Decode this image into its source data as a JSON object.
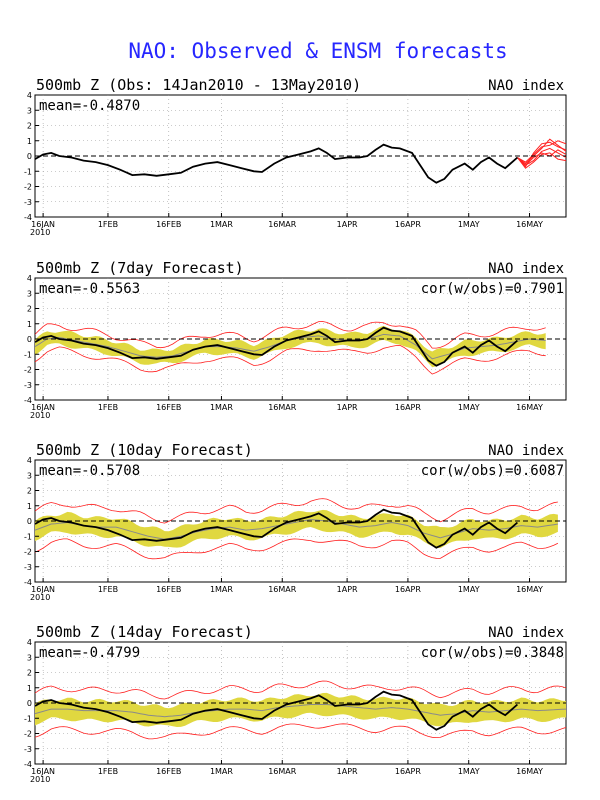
{
  "title": "NAO: Observed & ENSM forecasts",
  "colors": {
    "observed": "#000000",
    "ensemble_members": "#ff2020",
    "spread": "#e0d840",
    "ensemble_mean": "#8a8a8a",
    "title": "#2626ff"
  },
  "x_ticks": [
    "16JAN",
    "1FEB",
    "16FEB",
    "1MAR",
    "16MAR",
    "1APR",
    "16APR",
    "1MAY",
    "16MAY"
  ],
  "x_year": "2010",
  "y_ticks": [
    "4",
    "3",
    "2",
    "1",
    "0",
    "-1",
    "-2",
    "-3",
    "-4"
  ],
  "chart_data": [
    {
      "type": "line",
      "title": "500mb Z (Obs: 14Jan2010 - 13May2010)",
      "right_label": "NAO index",
      "stat_left": "mean=-0.4870",
      "stat_right": "",
      "ylim": [
        -4,
        4
      ],
      "xlim": [
        "14JAN",
        "25MAY"
      ],
      "zero_line": "dashed",
      "grid": "dotted",
      "series": [
        {
          "values": [
            [
              "2010-01-14",
              -0.2
            ],
            [
              "2010-01-16",
              0.1
            ],
            [
              "2010-01-18",
              0.2
            ],
            [
              "2010-01-20",
              0.0
            ],
            [
              "2010-01-23",
              -0.1
            ],
            [
              "2010-01-26",
              -0.3
            ],
            [
              "2010-01-29",
              -0.4
            ],
            [
              "2010-02-01",
              -0.6
            ],
            [
              "2010-02-04",
              -0.9
            ],
            [
              "2010-02-07",
              -1.25
            ],
            [
              "2010-02-10",
              -1.2
            ],
            [
              "2010-02-13",
              -1.3
            ],
            [
              "2010-02-16",
              -1.2
            ],
            [
              "2010-02-19",
              -1.1
            ],
            [
              "2010-02-22",
              -0.7
            ],
            [
              "2010-02-25",
              -0.5
            ],
            [
              "2010-02-28",
              -0.4
            ],
            [
              "2010-03-03",
              -0.6
            ],
            [
              "2010-03-06",
              -0.8
            ],
            [
              "2010-03-09",
              -1.0
            ],
            [
              "2010-03-11",
              -1.05
            ],
            [
              "2010-03-14",
              -0.5
            ],
            [
              "2010-03-17",
              -0.1
            ],
            [
              "2010-03-20",
              0.1
            ],
            [
              "2010-03-23",
              0.3
            ],
            [
              "2010-03-25",
              0.5
            ],
            [
              "2010-03-27",
              0.2
            ],
            [
              "2010-03-29",
              -0.2
            ],
            [
              "2010-04-01",
              -0.1
            ],
            [
              "2010-04-04",
              -0.1
            ],
            [
              "2010-04-06",
              0.0
            ],
            [
              "2010-04-08",
              0.4
            ],
            [
              "2010-04-10",
              0.75
            ],
            [
              "2010-04-12",
              0.55
            ],
            [
              "2010-04-14",
              0.5
            ],
            [
              "2010-04-17",
              0.2
            ],
            [
              "2010-04-19",
              -0.6
            ],
            [
              "2010-04-21",
              -1.4
            ],
            [
              "2010-04-23",
              -1.75
            ],
            [
              "2010-04-25",
              -1.5
            ],
            [
              "2010-04-27",
              -0.9
            ],
            [
              "2010-04-30",
              -0.5
            ],
            [
              "2010-05-02",
              -0.9
            ],
            [
              "2010-05-04",
              -0.4
            ],
            [
              "2010-05-06",
              -0.1
            ],
            [
              "2010-05-08",
              -0.5
            ],
            [
              "2010-05-10",
              -0.8
            ],
            [
              "2010-05-13",
              -0.1
            ]
          ]
        }
      ],
      "members": [
        [
          [
            "2010-05-13",
            -0.1
          ],
          [
            "2010-05-15",
            -0.7
          ],
          [
            "2010-05-17",
            0.2
          ],
          [
            "2010-05-19",
            0.8
          ],
          [
            "2010-05-21",
            0.9
          ],
          [
            "2010-05-23",
            0.6
          ],
          [
            "2010-05-25",
            0.4
          ]
        ],
        [
          [
            "2010-05-13",
            -0.1
          ],
          [
            "2010-05-15",
            -0.5
          ],
          [
            "2010-05-17",
            0.0
          ],
          [
            "2010-05-19",
            0.5
          ],
          [
            "2010-05-21",
            1.1
          ],
          [
            "2010-05-23",
            0.7
          ],
          [
            "2010-05-25",
            0.3
          ]
        ],
        [
          [
            "2010-05-13",
            -0.1
          ],
          [
            "2010-05-15",
            -0.6
          ],
          [
            "2010-05-17",
            -0.3
          ],
          [
            "2010-05-19",
            0.3
          ],
          [
            "2010-05-21",
            0.5
          ],
          [
            "2010-05-23",
            0.2
          ],
          [
            "2010-05-25",
            -0.1
          ]
        ],
        [
          [
            "2010-05-13",
            -0.1
          ],
          [
            "2010-05-15",
            -0.8
          ],
          [
            "2010-05-17",
            -0.4
          ],
          [
            "2010-05-19",
            0.1
          ],
          [
            "2010-05-21",
            0.2
          ],
          [
            "2010-05-23",
            -0.2
          ],
          [
            "2010-05-25",
            -0.3
          ]
        ],
        [
          [
            "2010-05-13",
            -0.1
          ],
          [
            "2010-05-15",
            -0.4
          ],
          [
            "2010-05-17",
            0.1
          ],
          [
            "2010-05-19",
            0.6
          ],
          [
            "2010-05-21",
            0.7
          ],
          [
            "2010-05-23",
            1.0
          ],
          [
            "2010-05-25",
            0.8
          ]
        ],
        [
          [
            "2010-05-13",
            -0.1
          ],
          [
            "2010-05-15",
            -0.6
          ],
          [
            "2010-05-17",
            -0.1
          ],
          [
            "2010-05-19",
            0.2
          ],
          [
            "2010-05-21",
            0.0
          ],
          [
            "2010-05-23",
            0.4
          ],
          [
            "2010-05-25",
            0.1
          ]
        ]
      ]
    },
    {
      "type": "line",
      "title": "500mb Z (7day Forecast)",
      "right_label": "NAO index",
      "stat_left": "mean=-0.5563",
      "stat_right": "cor(w/obs)=0.7901",
      "ylim": [
        -4,
        4
      ],
      "xlim": [
        "14JAN",
        "25MAY"
      ],
      "zero_line": "dashed",
      "grid": "dotted",
      "spread_width": 0.45,
      "member_width": 0.8,
      "forecast_end": "2010-05-20",
      "forecast_mean": [
        [
          "2010-01-14",
          -0.5
        ],
        [
          "2010-01-17",
          0.0
        ],
        [
          "2010-01-20",
          0.1
        ],
        [
          "2010-01-24",
          -0.1
        ],
        [
          "2010-01-28",
          -0.3
        ],
        [
          "2010-02-01",
          -0.5
        ],
        [
          "2010-02-05",
          -0.8
        ],
        [
          "2010-02-09",
          -1.1
        ],
        [
          "2010-02-13",
          -1.2
        ],
        [
          "2010-02-17",
          -1.1
        ],
        [
          "2010-02-21",
          -0.8
        ],
        [
          "2010-02-25",
          -0.5
        ],
        [
          "2010-03-01",
          -0.5
        ],
        [
          "2010-03-05",
          -0.6
        ],
        [
          "2010-03-09",
          -0.8
        ],
        [
          "2010-03-13",
          -0.5
        ],
        [
          "2010-03-17",
          -0.1
        ],
        [
          "2010-03-21",
          0.1
        ],
        [
          "2010-03-25",
          0.2
        ],
        [
          "2010-03-29",
          0.0
        ],
        [
          "2010-04-02",
          -0.1
        ],
        [
          "2010-04-06",
          0.0
        ],
        [
          "2010-04-10",
          0.3
        ],
        [
          "2010-04-14",
          0.2
        ],
        [
          "2010-04-18",
          -0.4
        ],
        [
          "2010-04-22",
          -1.3
        ],
        [
          "2010-04-26",
          -1.0
        ],
        [
          "2010-04-30",
          -0.6
        ],
        [
          "2010-05-04",
          -0.5
        ],
        [
          "2010-05-08",
          -0.4
        ],
        [
          "2010-05-12",
          -0.2
        ],
        [
          "2010-05-16",
          0.0
        ],
        [
          "2010-05-20",
          -0.1
        ]
      ]
    },
    {
      "type": "line",
      "title": "500mb Z (10day Forecast)",
      "right_label": "NAO index",
      "stat_left": "mean=-0.5708",
      "stat_right": "cor(w/obs)=0.6087",
      "ylim": [
        -4,
        4
      ],
      "xlim": [
        "14JAN",
        "25MAY"
      ],
      "zero_line": "dashed",
      "grid": "dotted",
      "spread_width": 0.6,
      "member_width": 1.25,
      "forecast_end": "2010-05-23",
      "forecast_mean": [
        [
          "2010-01-14",
          -0.6
        ],
        [
          "2010-01-18",
          -0.2
        ],
        [
          "2010-01-22",
          -0.1
        ],
        [
          "2010-01-26",
          -0.3
        ],
        [
          "2010-01-30",
          -0.4
        ],
        [
          "2010-02-03",
          -0.4
        ],
        [
          "2010-02-07",
          -0.7
        ],
        [
          "2010-02-11",
          -1.0
        ],
        [
          "2010-02-15",
          -1.2
        ],
        [
          "2010-02-19",
          -1.0
        ],
        [
          "2010-02-23",
          -0.7
        ],
        [
          "2010-02-27",
          -0.5
        ],
        [
          "2010-03-03",
          -0.4
        ],
        [
          "2010-03-07",
          -0.6
        ],
        [
          "2010-03-11",
          -0.5
        ],
        [
          "2010-03-15",
          -0.3
        ],
        [
          "2010-03-19",
          -0.1
        ],
        [
          "2010-03-23",
          0.1
        ],
        [
          "2010-03-27",
          0.0
        ],
        [
          "2010-03-31",
          -0.2
        ],
        [
          "2010-04-04",
          -0.4
        ],
        [
          "2010-04-08",
          -0.3
        ],
        [
          "2010-04-12",
          -0.1
        ],
        [
          "2010-04-16",
          -0.3
        ],
        [
          "2010-04-20",
          -0.8
        ],
        [
          "2010-04-24",
          -1.1
        ],
        [
          "2010-04-28",
          -0.8
        ],
        [
          "2010-05-02",
          -0.5
        ],
        [
          "2010-05-06",
          -0.6
        ],
        [
          "2010-05-10",
          -0.5
        ],
        [
          "2010-05-14",
          -0.3
        ],
        [
          "2010-05-18",
          -0.4
        ],
        [
          "2010-05-23",
          -0.2
        ]
      ]
    },
    {
      "type": "line",
      "title": "500mb Z (14day Forecast)",
      "right_label": "NAO index",
      "stat_left": "mean=-0.4799",
      "stat_right": "cor(w/obs)=0.3848",
      "ylim": [
        -4,
        4
      ],
      "xlim": [
        "14JAN",
        "25MAY"
      ],
      "zero_line": "dashed",
      "grid": "dotted",
      "spread_width": 0.65,
      "member_width": 1.35,
      "forecast_end": "2010-05-25",
      "forecast_mean": [
        [
          "2010-01-14",
          -0.7
        ],
        [
          "2010-01-18",
          -0.4
        ],
        [
          "2010-01-22",
          -0.4
        ],
        [
          "2010-01-26",
          -0.5
        ],
        [
          "2010-01-30",
          -0.5
        ],
        [
          "2010-02-03",
          -0.5
        ],
        [
          "2010-02-07",
          -0.6
        ],
        [
          "2010-02-11",
          -0.8
        ],
        [
          "2010-02-15",
          -0.9
        ],
        [
          "2010-02-19",
          -0.8
        ],
        [
          "2010-02-23",
          -0.6
        ],
        [
          "2010-02-27",
          -0.5
        ],
        [
          "2010-03-03",
          -0.4
        ],
        [
          "2010-03-07",
          -0.4
        ],
        [
          "2010-03-11",
          -0.5
        ],
        [
          "2010-03-15",
          -0.3
        ],
        [
          "2010-03-19",
          -0.2
        ],
        [
          "2010-03-23",
          -0.1
        ],
        [
          "2010-03-27",
          -0.1
        ],
        [
          "2010-03-31",
          -0.2
        ],
        [
          "2010-04-04",
          -0.3
        ],
        [
          "2010-04-08",
          -0.4
        ],
        [
          "2010-04-12",
          -0.3
        ],
        [
          "2010-04-16",
          -0.4
        ],
        [
          "2010-04-20",
          -0.6
        ],
        [
          "2010-04-24",
          -0.8
        ],
        [
          "2010-04-28",
          -0.7
        ],
        [
          "2010-05-02",
          -0.5
        ],
        [
          "2010-05-06",
          -0.6
        ],
        [
          "2010-05-10",
          -0.5
        ],
        [
          "2010-05-14",
          -0.4
        ],
        [
          "2010-05-18",
          -0.5
        ],
        [
          "2010-05-25",
          -0.4
        ]
      ]
    }
  ]
}
